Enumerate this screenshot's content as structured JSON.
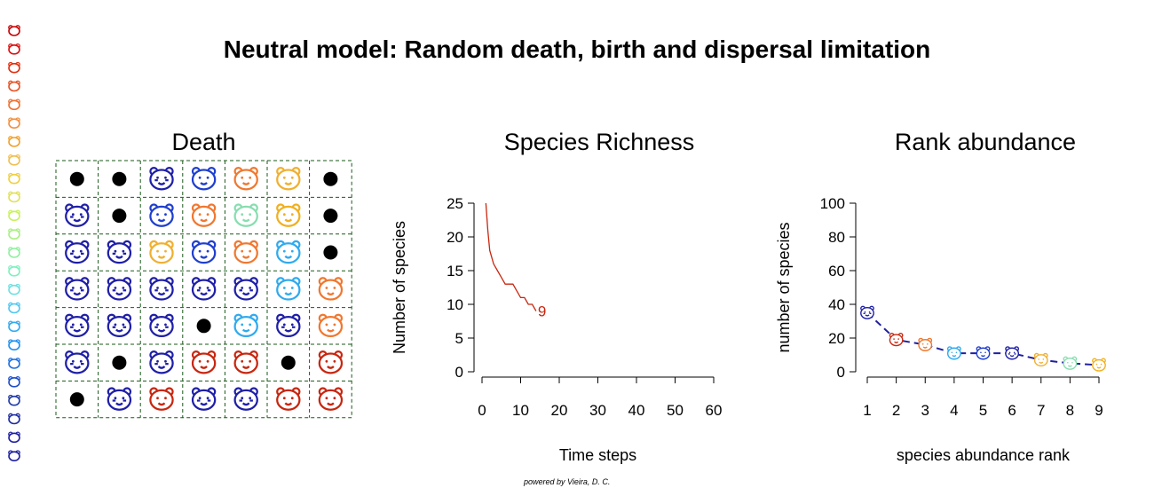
{
  "title": "Neutral model:  Random death, birth and dispersal limitation",
  "credit": "powered by Vieira, D. C.",
  "icon_colors": {
    "tiger": "#1f1fa8",
    "zebra": "#1f1fa8",
    "lion": "#1f3fcf",
    "cat": "#c8260f",
    "raccoon": "#f07830",
    "cow": "#f0b030",
    "monkey": "#88ddb0",
    "fox": "#f0b020",
    "wolf": "#30aaee"
  },
  "legend_colors": [
    "#c80000",
    "#d81010",
    "#e03010",
    "#e85020",
    "#f07030",
    "#f09040",
    "#f0a030",
    "#f0c050",
    "#f0d040",
    "#e0e060",
    "#c8f060",
    "#a8f080",
    "#90f0a0",
    "#80f0c0",
    "#70e0e0",
    "#50c8f0",
    "#30aaf0",
    "#2090f0",
    "#1f70e0",
    "#1f50c8",
    "#1f3aa8",
    "#1f2aa0",
    "#1f1fa0",
    "#1f1fa0"
  ],
  "grid_panel": {
    "title": "Death",
    "rows": [
      [
        "dead",
        "dead",
        "zebra",
        "lion",
        "raccoon",
        "cow",
        "dead"
      ],
      [
        "tiger",
        "dead",
        "lion",
        "raccoon",
        "monkey",
        "fox",
        "dead"
      ],
      [
        "tiger",
        "tiger",
        "cow",
        "lion",
        "raccoon",
        "wolf",
        "dead"
      ],
      [
        "tiger",
        "tiger",
        "tiger",
        "tiger",
        "zebra",
        "wolf",
        "raccoon"
      ],
      [
        "tiger",
        "tiger",
        "tiger",
        "dead",
        "wolf",
        "zebra",
        "raccoon"
      ],
      [
        "zebra",
        "dead",
        "tiger",
        "cat",
        "cat",
        "dead",
        "cat"
      ],
      [
        "dead",
        "tiger",
        "cat",
        "tiger",
        "tiger",
        "cat",
        "cat"
      ]
    ]
  },
  "chart_data": [
    {
      "type": "line",
      "title": "Species Richness",
      "xlabel": "Time steps",
      "ylabel": "Number of species",
      "xlim": [
        0,
        60
      ],
      "ylim": [
        0,
        25
      ],
      "xticks": [
        0,
        10,
        20,
        30,
        40,
        50,
        60
      ],
      "yticks": [
        0,
        5,
        10,
        15,
        20,
        25
      ],
      "x": [
        1,
        1.5,
        2,
        2.5,
        3,
        4,
        5,
        6,
        7,
        8,
        9,
        10,
        11,
        12,
        13,
        14
      ],
      "y": [
        25,
        21,
        18,
        17,
        16,
        15,
        14,
        13,
        13,
        13,
        12,
        11,
        11,
        10,
        10,
        9
      ],
      "end_label": "9",
      "line_color": "#c8260f"
    },
    {
      "type": "line",
      "title": "Rank abundance",
      "xlabel": "species abundance rank",
      "ylabel": "number of species",
      "xlim": [
        1,
        9
      ],
      "ylim": [
        0,
        100
      ],
      "xticks": [
        1,
        2,
        3,
        4,
        5,
        6,
        7,
        8,
        9
      ],
      "yticks": [
        0,
        20,
        40,
        60,
        80,
        100
      ],
      "x": [
        1,
        2,
        3,
        4,
        5,
        6,
        7,
        8,
        9
      ],
      "y": [
        35,
        19,
        16,
        11,
        11,
        11,
        7,
        5,
        4
      ],
      "species": [
        "tiger",
        "cat",
        "raccoon",
        "wolf",
        "lion",
        "zebra",
        "cow",
        "monkey",
        "fox"
      ],
      "line_color": "#1f1f9f"
    }
  ]
}
